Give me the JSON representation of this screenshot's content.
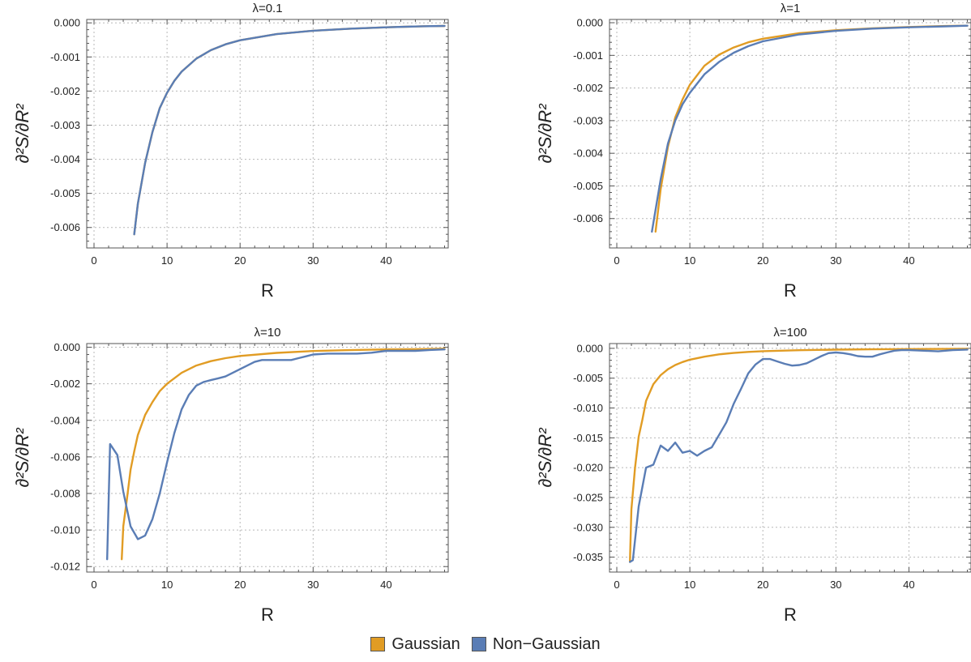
{
  "legend": {
    "items": [
      {
        "label": "Gaussian",
        "color": "#E19C24"
      },
      {
        "label": "Non−Gaussian",
        "color": "#5A7DB5"
      }
    ]
  },
  "chart_data": [
    {
      "type": "line",
      "title": "λ=0.1",
      "xlabel": "R",
      "ylabel": "∂²S/∂R²",
      "xlim": [
        -1,
        48.5
      ],
      "ylim": [
        -0.0066,
        0.0001
      ],
      "xticks": [
        0,
        10,
        20,
        30,
        40
      ],
      "xtick_labels": [
        "0",
        "10",
        "20",
        "30",
        "40"
      ],
      "yticks": [
        0,
        -0.001,
        -0.002,
        -0.003,
        -0.004,
        -0.005,
        -0.006
      ],
      "ytick_labels": [
        "0.000",
        "-0.001",
        "-0.002",
        "-0.003",
        "-0.004",
        "-0.005",
        "-0.006"
      ],
      "grid": true,
      "series": [
        {
          "name": "Gaussian",
          "color": "#E19C24",
          "x": [
            5.5,
            6,
            7,
            8,
            9,
            10,
            11,
            12,
            14,
            16,
            18,
            20,
            25,
            30,
            35,
            40,
            45,
            48
          ],
          "y": [
            -0.0062,
            -0.0053,
            -0.0041,
            -0.0032,
            -0.0025,
            -0.00205,
            -0.0017,
            -0.00143,
            -0.00105,
            -0.0008,
            -0.00063,
            -0.00051,
            -0.00033,
            -0.00023,
            -0.00017,
            -0.00013,
            -0.0001,
            -9e-05
          ]
        },
        {
          "name": "Non−Gaussian",
          "color": "#5A7DB5",
          "x": [
            5.5,
            6,
            7,
            8,
            9,
            10,
            11,
            12,
            14,
            16,
            18,
            20,
            25,
            30,
            35,
            40,
            45,
            48
          ],
          "y": [
            -0.0062,
            -0.0053,
            -0.0041,
            -0.0032,
            -0.0025,
            -0.00205,
            -0.0017,
            -0.00143,
            -0.00105,
            -0.0008,
            -0.00063,
            -0.00051,
            -0.00033,
            -0.00023,
            -0.00017,
            -0.00013,
            -0.0001,
            -9e-05
          ]
        }
      ]
    },
    {
      "type": "line",
      "title": "λ=1",
      "xlabel": "R",
      "ylabel": "∂²S/∂R²",
      "xlim": [
        -1,
        48.5
      ],
      "ylim": [
        -0.0069,
        0.0001
      ],
      "xticks": [
        0,
        10,
        20,
        30,
        40
      ],
      "xtick_labels": [
        "0",
        "10",
        "20",
        "30",
        "40"
      ],
      "yticks": [
        0,
        -0.001,
        -0.002,
        -0.003,
        -0.004,
        -0.005,
        -0.006
      ],
      "ytick_labels": [
        "0.000",
        "-0.001",
        "-0.002",
        "-0.003",
        "-0.004",
        "-0.005",
        "-0.006"
      ],
      "grid": true,
      "series": [
        {
          "name": "Gaussian",
          "color": "#E19C24",
          "x": [
            5.3,
            6,
            7,
            8,
            9,
            10,
            12,
            14,
            16,
            18,
            20,
            25,
            30,
            35,
            40,
            45,
            48
          ],
          "y": [
            -0.0064,
            -0.0051,
            -0.0038,
            -0.0029,
            -0.00235,
            -0.0019,
            -0.00132,
            -0.00098,
            -0.00076,
            -0.0006,
            -0.00049,
            -0.00032,
            -0.00023,
            -0.00017,
            -0.00013,
            -0.0001,
            -9e-05
          ]
        },
        {
          "name": "Non−Gaussian",
          "color": "#5A7DB5",
          "x": [
            4.8,
            6,
            7,
            8,
            9,
            10,
            12,
            14,
            16,
            18,
            20,
            25,
            30,
            35,
            40,
            45,
            48
          ],
          "y": [
            -0.0064,
            -0.0048,
            -0.0037,
            -0.003,
            -0.0025,
            -0.00215,
            -0.00158,
            -0.0012,
            -0.00092,
            -0.00072,
            -0.00057,
            -0.00036,
            -0.00025,
            -0.00018,
            -0.00014,
            -0.00011,
            -9e-05
          ]
        }
      ]
    },
    {
      "type": "line",
      "title": "λ=10",
      "xlabel": "R",
      "ylabel": "∂²S/∂R²",
      "xlim": [
        -1,
        48.5
      ],
      "ylim": [
        -0.0123,
        0.0002
      ],
      "xticks": [
        0,
        10,
        20,
        30,
        40
      ],
      "xtick_labels": [
        "0",
        "10",
        "20",
        "30",
        "40"
      ],
      "yticks": [
        0,
        -0.002,
        -0.004,
        -0.006,
        -0.008,
        -0.01,
        -0.012
      ],
      "ytick_labels": [
        "0.000",
        "-0.002",
        "-0.004",
        "-0.006",
        "-0.008",
        "-0.010",
        "-0.012"
      ],
      "grid": true,
      "series": [
        {
          "name": "Gaussian",
          "color": "#E19C24",
          "x": [
            3.8,
            4,
            4.5,
            5,
            5.5,
            6,
            7,
            8,
            9,
            10,
            12,
            14,
            16,
            18,
            20,
            25,
            30,
            35,
            40,
            45,
            48
          ],
          "y": [
            -0.0116,
            -0.0098,
            -0.0083,
            -0.0067,
            -0.0057,
            -0.0048,
            -0.0037,
            -0.003,
            -0.0024,
            -0.002,
            -0.0014,
            -0.001,
            -0.00076,
            -0.0006,
            -0.00048,
            -0.00031,
            -0.00021,
            -0.00016,
            -0.00012,
            -0.0001,
            -8e-05
          ]
        },
        {
          "name": "Non−Gaussian",
          "color": "#5A7DB5",
          "x": [
            1.8,
            2.2,
            3.2,
            4,
            5,
            6,
            7,
            8,
            9,
            10,
            11,
            12,
            13,
            14,
            15,
            16,
            17,
            18,
            19,
            20,
            21,
            22,
            23,
            24,
            25,
            26,
            27,
            28,
            29,
            30,
            32,
            34,
            36,
            38,
            40,
            42,
            44,
            46,
            48
          ],
          "y": [
            -0.0116,
            -0.0053,
            -0.0059,
            -0.0079,
            -0.0098,
            -0.0105,
            -0.0103,
            -0.0094,
            -0.008,
            -0.0063,
            -0.0047,
            -0.0034,
            -0.0026,
            -0.0021,
            -0.0019,
            -0.0018,
            -0.0017,
            -0.0016,
            -0.0014,
            -0.0012,
            -0.001,
            -0.0008,
            -0.0007,
            -0.0007,
            -0.0007,
            -0.0007,
            -0.0007,
            -0.0006,
            -0.0005,
            -0.0004,
            -0.00035,
            -0.00035,
            -0.00035,
            -0.0003,
            -0.0002,
            -0.0002,
            -0.0002,
            -0.00015,
            -0.00012
          ]
        }
      ]
    },
    {
      "type": "line",
      "title": "λ=100",
      "xlabel": "R",
      "ylabel": "∂²S/∂R²",
      "xlim": [
        -1,
        48.5
      ],
      "ylim": [
        -0.0375,
        0.0008
      ],
      "xticks": [
        0,
        10,
        20,
        30,
        40
      ],
      "xtick_labels": [
        "0",
        "10",
        "20",
        "30",
        "40"
      ],
      "yticks": [
        0,
        -0.005,
        -0.01,
        -0.015,
        -0.02,
        -0.025,
        -0.03,
        -0.035
      ],
      "ytick_labels": [
        "0.000",
        "-0.005",
        "-0.010",
        "-0.015",
        "-0.020",
        "-0.025",
        "-0.030",
        "-0.035"
      ],
      "grid": true,
      "series": [
        {
          "name": "Gaussian",
          "color": "#E19C24",
          "x": [
            1.8,
            2,
            2.5,
            3,
            3.5,
            4,
            5,
            6,
            7,
            8,
            9,
            10,
            12,
            14,
            16,
            18,
            20,
            25,
            30,
            35,
            40,
            45,
            48
          ],
          "y": [
            -0.0358,
            -0.027,
            -0.02,
            -0.0148,
            -0.012,
            -0.0088,
            -0.006,
            -0.0045,
            -0.0035,
            -0.0028,
            -0.0023,
            -0.0019,
            -0.0014,
            -0.001,
            -0.00078,
            -0.0006,
            -0.00048,
            -0.00031,
            -0.00022,
            -0.00016,
            -0.00012,
            -0.0001,
            -8e-05
          ]
        },
        {
          "name": "Non−Gaussian",
          "color": "#5A7DB5",
          "x": [
            1.8,
            2.2,
            3,
            4,
            5,
            6,
            7,
            8,
            9,
            10,
            11,
            12,
            13,
            14,
            15,
            16,
            17,
            18,
            19,
            20,
            21,
            22,
            23,
            24,
            25,
            26,
            27,
            28,
            29,
            30,
            31,
            32,
            33,
            34,
            35,
            36,
            37,
            38,
            39,
            40,
            42,
            44,
            46,
            48
          ],
          "y": [
            -0.0358,
            -0.0355,
            -0.0265,
            -0.02,
            -0.0195,
            -0.0163,
            -0.0172,
            -0.0158,
            -0.0175,
            -0.0172,
            -0.018,
            -0.0172,
            -0.0166,
            -0.0145,
            -0.0124,
            -0.0093,
            -0.0068,
            -0.0042,
            -0.0027,
            -0.0018,
            -0.0018,
            -0.0022,
            -0.0026,
            -0.0029,
            -0.0028,
            -0.0025,
            -0.0019,
            -0.0013,
            -0.0008,
            -0.0007,
            -0.0008,
            -0.001,
            -0.0013,
            -0.0014,
            -0.0014,
            -0.001,
            -0.0007,
            -0.0004,
            -0.0003,
            -0.0003,
            -0.0004,
            -0.0005,
            -0.0003,
            -0.0002
          ]
        }
      ]
    }
  ]
}
